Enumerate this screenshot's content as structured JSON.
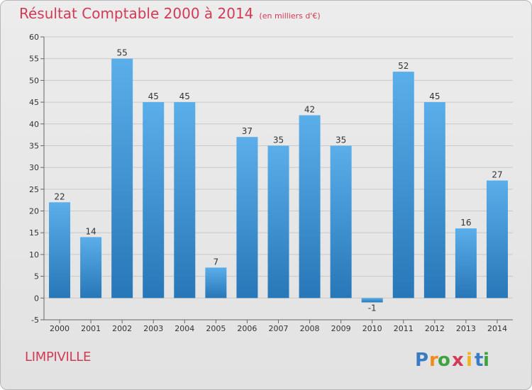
{
  "header": {
    "title": "Résultat Comptable 2000 à 2014",
    "subtitle": "(en milliers d'€)"
  },
  "commune": "LIMPIVILLE",
  "brand": {
    "name": "Proxiti",
    "letters": [
      "P",
      "r",
      "o",
      "x",
      "i",
      "t",
      "i"
    ]
  },
  "colors": {
    "title": "#d23a55",
    "bar_top": "#5aaee9",
    "bar_bottom": "#2877b8",
    "grid": "#c8c8c8",
    "axis_text": "#333333"
  },
  "chart_data": {
    "type": "bar",
    "categories": [
      "2000",
      "2001",
      "2002",
      "2003",
      "2004",
      "2005",
      "2006",
      "2007",
      "2008",
      "2009",
      "2010",
      "2011",
      "2012",
      "2013",
      "2014"
    ],
    "values": [
      22,
      14,
      55,
      45,
      45,
      7,
      37,
      35,
      42,
      35,
      -1,
      52,
      45,
      16,
      27
    ],
    "data_labels": [
      "22",
      "14",
      "55",
      "45",
      "45",
      "7",
      "37",
      "35",
      "42",
      "35",
      "-1",
      "52",
      "45",
      "16",
      "27"
    ],
    "ylim": [
      -5,
      60
    ],
    "yticks": [
      "-5",
      "0",
      "5",
      "10",
      "15",
      "20",
      "25",
      "30",
      "35",
      "40",
      "45",
      "50",
      "55",
      "60"
    ],
    "grid": true,
    "legend": "none"
  }
}
